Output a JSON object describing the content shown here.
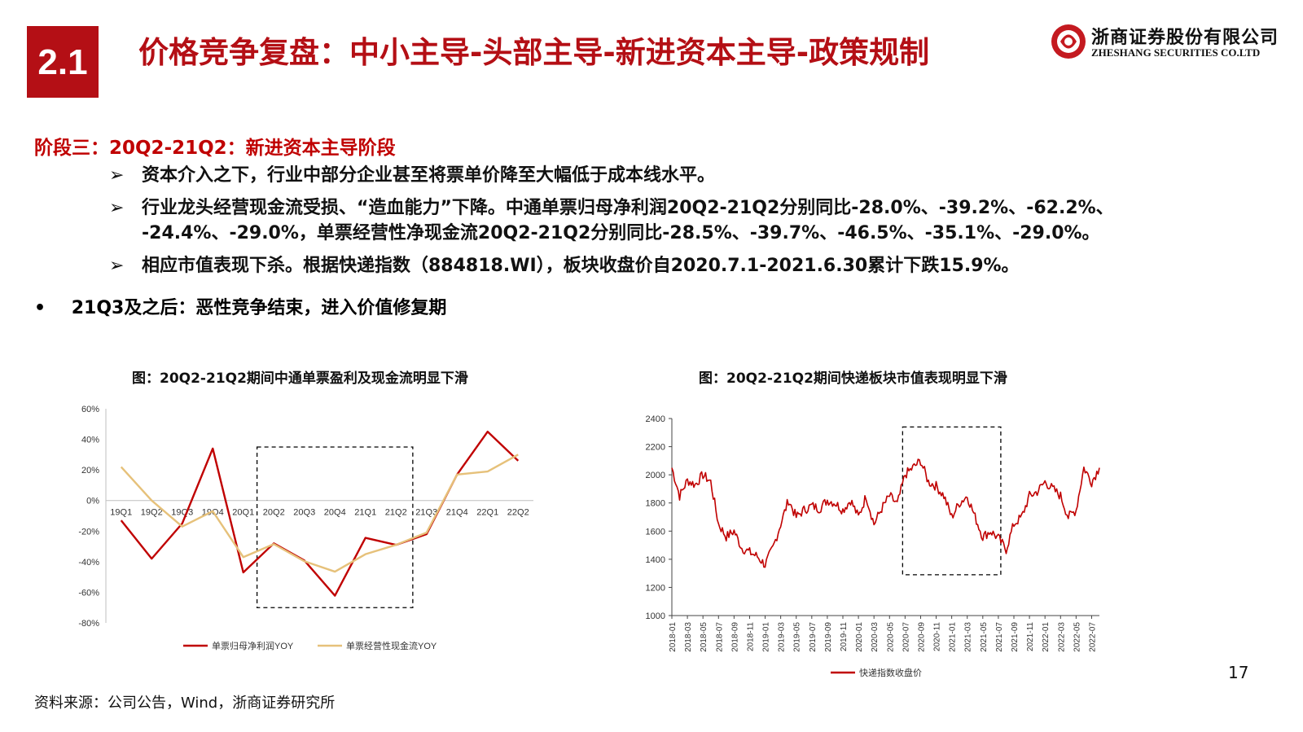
{
  "header": {
    "section_number": "2.1",
    "title": "价格竞争复盘：中小主导-头部主导-新进资本主导-政策规制",
    "logo_cn": "浙商证券股份有限公司",
    "logo_en": "ZHESHANG SECURITIES CO.LTD",
    "brand_color": "#b40f15"
  },
  "body": {
    "stage_heading": "阶段三：20Q2-21Q2：新进资本主导阶段",
    "bullet_marker": "➢",
    "bullets": [
      "资本介入之下，行业中部分企业甚至将票单价降至大幅低于成本线水平。",
      "行业龙头经营现金流受损、“造血能力”下降。中通单票归母净利润20Q2-21Q2分别同比-28.0%、-39.2%、-62.2%、",
      "-24.4%、-29.0%，单票经营性净现金流20Q2-21Q2分别同比-28.5%、-39.7%、-46.5%、-35.1%、-29.0%。",
      "相应市值表现下杀。根据快递指数（884818.WI），板块收盘价自2020.7.1-2021.6.30累计下跌15.9%。"
    ],
    "dot_marker": "•",
    "dot_bullet": "21Q3及之后：恶性竞争结束，进入价值修复期"
  },
  "chart_titles": {
    "left": "图：20Q2-21Q2期间中通单票盈利及现金流明显下滑",
    "right": "图：20Q2-21Q2期间快递板块市值表现明显下滑"
  },
  "chart_data": [
    {
      "type": "line",
      "title": "图：20Q2-21Q2期间中通单票盈利及现金流明显下滑",
      "categories": [
        "19Q1",
        "19Q2",
        "19Q3",
        "19Q4",
        "20Q1",
        "20Q2",
        "20Q3",
        "20Q4",
        "21Q1",
        "21Q2",
        "21Q3",
        "21Q4",
        "22Q1",
        "22Q2"
      ],
      "series": [
        {
          "name": "单票归母净利润YOY",
          "color": "#c00000",
          "values": [
            -13,
            -38,
            -15,
            34,
            -47,
            -28,
            -39.2,
            -62.2,
            -24.4,
            -29,
            -22,
            17,
            45,
            26
          ]
        },
        {
          "name": "单票经营性现金流YOY",
          "color": "#e6c17a",
          "values": [
            22,
            0,
            -17,
            -7,
            -37,
            -28.5,
            -39.7,
            -46.5,
            -35.1,
            -29,
            -21,
            17,
            19,
            30
          ]
        }
      ],
      "ylim": [
        -80,
        60
      ],
      "yticks": [
        -80,
        -60,
        -40,
        -20,
        0,
        20,
        40,
        60
      ],
      "ytick_labels": [
        "-80%",
        "-60%",
        "-40%",
        "-20%",
        "0%",
        "20%",
        "40%",
        "60%"
      ],
      "highlight": {
        "from": "20Q2",
        "to": "21Q2",
        "style": "dashed box"
      },
      "legend_position": "bottom"
    },
    {
      "type": "line",
      "title": "图：20Q2-21Q2期间快递板块市值表现明显下滑",
      "x_ticks": [
        "2018-01",
        "2018-03",
        "2018-05",
        "2018-07",
        "2018-09",
        "2018-11",
        "2019-01",
        "2019-03",
        "2019-05",
        "2019-07",
        "2019-09",
        "2019-11",
        "2020-01",
        "2020-03",
        "2020-05",
        "2020-07",
        "2020-09",
        "2020-11",
        "2021-01",
        "2021-03",
        "2021-05",
        "2021-07",
        "2021-09",
        "2021-11",
        "2022-01",
        "2022-03",
        "2022-05",
        "2022-07"
      ],
      "ylim": [
        1000,
        2400
      ],
      "yticks": [
        1000,
        1200,
        1400,
        1600,
        1800,
        2000,
        2200,
        2400
      ],
      "series": [
        {
          "name": "快递指数收盘价",
          "color": "#c00000",
          "x": [
            "2018-01",
            "2018-02",
            "2018-03",
            "2018-04",
            "2018-05",
            "2018-06",
            "2018-07",
            "2018-08",
            "2018-09",
            "2018-10",
            "2018-11",
            "2018-12",
            "2019-01",
            "2019-02",
            "2019-03",
            "2019-04",
            "2019-05",
            "2019-06",
            "2019-07",
            "2019-08",
            "2019-09",
            "2019-10",
            "2019-11",
            "2019-12",
            "2020-01",
            "2020-02",
            "2020-03",
            "2020-04",
            "2020-05",
            "2020-06",
            "2020-07",
            "2020-08",
            "2020-09",
            "2020-10",
            "2020-11",
            "2020-12",
            "2021-01",
            "2021-02",
            "2021-03",
            "2021-04",
            "2021-05",
            "2021-06",
            "2021-07",
            "2021-08",
            "2021-09",
            "2021-10",
            "2021-11",
            "2021-12",
            "2022-01",
            "2022-02",
            "2022-03",
            "2022-04",
            "2022-05",
            "2022-06",
            "2022-07",
            "2022-08"
          ],
          "values": [
            2050,
            1850,
            1960,
            1930,
            2000,
            1950,
            1650,
            1560,
            1600,
            1480,
            1450,
            1420,
            1360,
            1480,
            1650,
            1820,
            1700,
            1750,
            1780,
            1760,
            1820,
            1800,
            1750,
            1820,
            1700,
            1850,
            1650,
            1760,
            1850,
            1790,
            2000,
            2050,
            2100,
            1950,
            1920,
            1850,
            1700,
            1800,
            1850,
            1700,
            1560,
            1600,
            1550,
            1470,
            1650,
            1700,
            1850,
            1880,
            1950,
            1900,
            1850,
            1700,
            1750,
            2050,
            1950,
            2050
          ]
        }
      ],
      "highlight": {
        "from": "2020-07",
        "to": "2021-07",
        "style": "dashed box"
      },
      "legend_position": "bottom"
    }
  ],
  "footer": {
    "source": "资料来源：公司公告，Wind，浙商证券研究所",
    "page_number": "17"
  }
}
